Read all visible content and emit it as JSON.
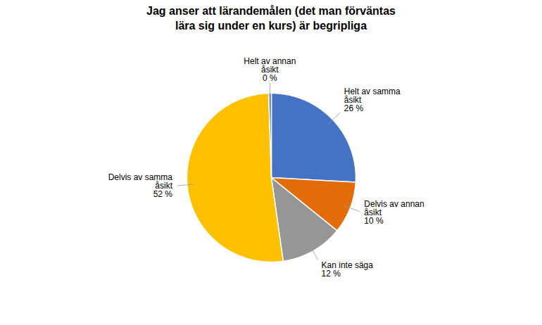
{
  "chart_data": {
    "type": "pie",
    "title": "Jag anser att lärandemålen (det man förväntas\nlära sig under en kurs) är begripliga",
    "categories": [
      "Helt av samma\nåsikt",
      "Delvis av annan\nåsikt",
      "Kan inte säga",
      "Delvis av samma\nåsikt",
      "Helt av annan\nåsikt"
    ],
    "values": [
      26,
      10,
      12,
      52,
      0.5
    ],
    "value_labels": [
      "26 %",
      "10 %",
      "12 %",
      "52 %",
      "0 %"
    ],
    "colors": [
      "#4472C4",
      "#E36C09",
      "#969696",
      "#FFC000",
      "#4472C4"
    ],
    "data_labels": true
  }
}
